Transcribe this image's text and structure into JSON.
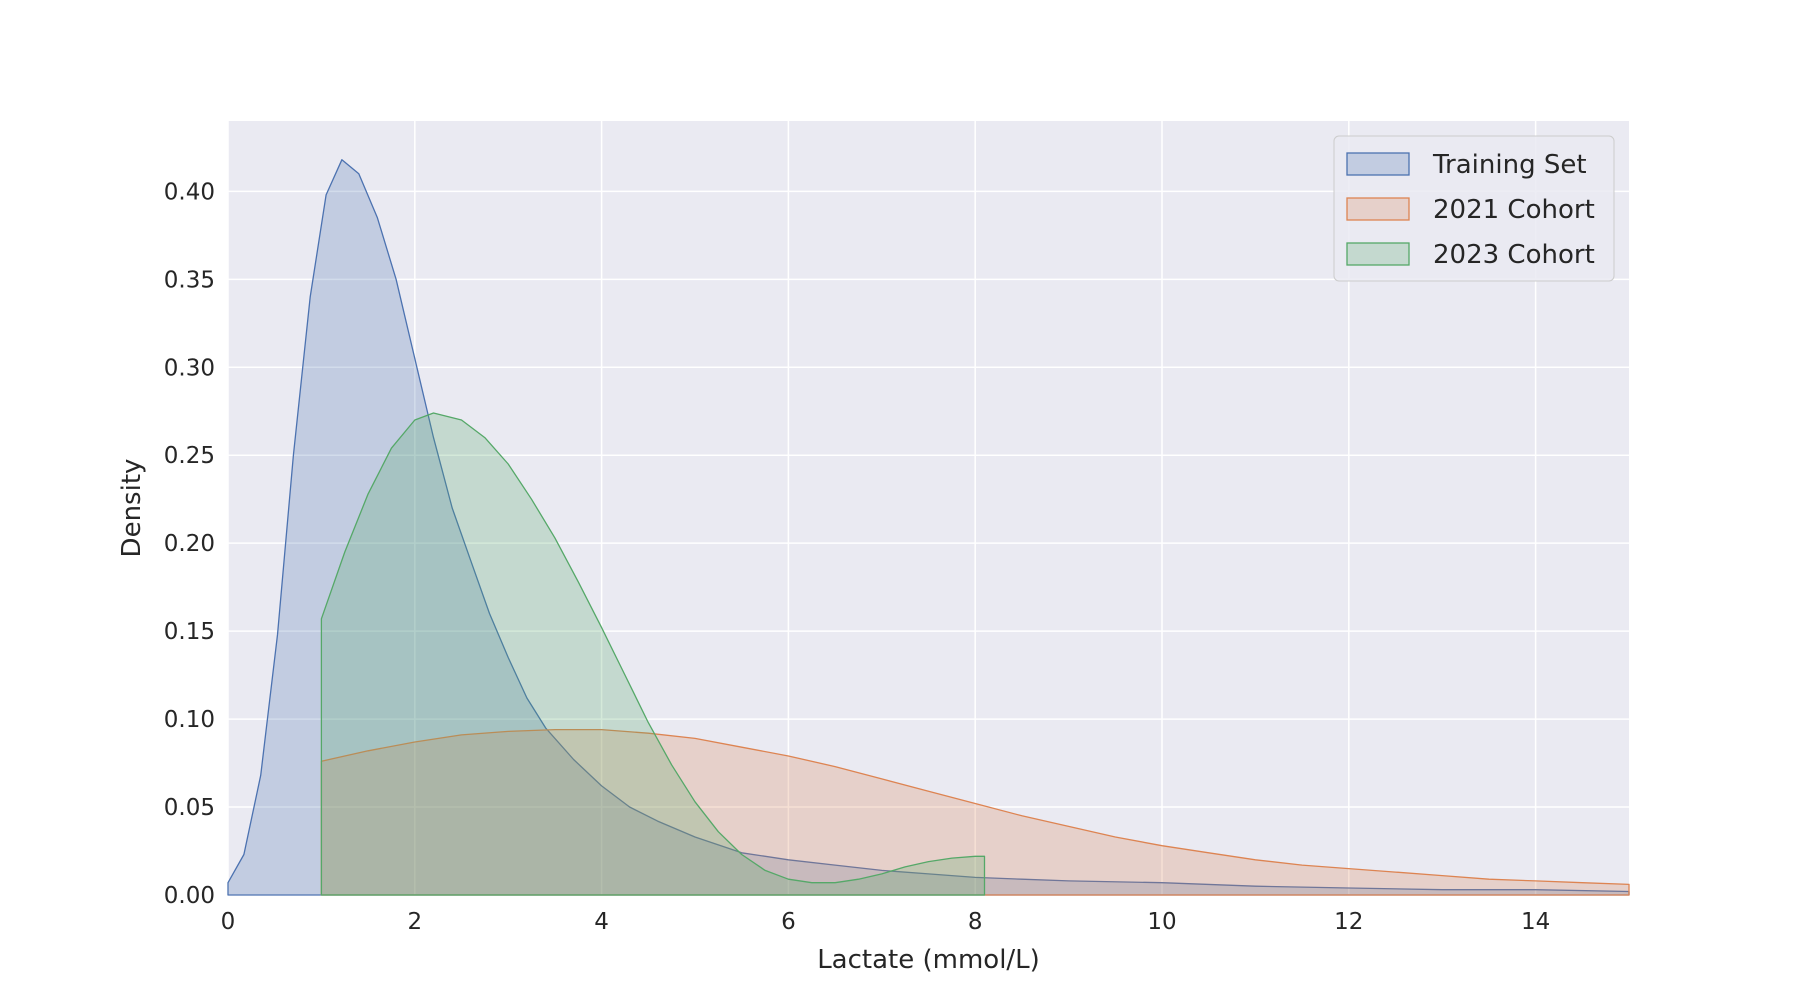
{
  "chart_data": {
    "type": "area",
    "title": "",
    "xlabel": "Lactate (mmol/L)",
    "ylabel": "Density",
    "xlim": [
      0,
      15
    ],
    "ylim": [
      0,
      0.44
    ],
    "x_ticks": [
      0,
      2,
      4,
      6,
      8,
      10,
      12,
      14
    ],
    "x_tick_labels": [
      "0",
      "2",
      "4",
      "6",
      "8",
      "10",
      "12",
      "14"
    ],
    "y_ticks": [
      0,
      0.05,
      0.1,
      0.15,
      0.2,
      0.25,
      0.3,
      0.35,
      0.4
    ],
    "y_tick_labels": [
      "0.00",
      "0.05",
      "0.10",
      "0.15",
      "0.20",
      "0.25",
      "0.30",
      "0.35",
      "0.40"
    ],
    "grid": true,
    "legend_position": "top-right",
    "series": [
      {
        "name": "Training Set",
        "color": "#4c72b0",
        "fill": "#c4cbe4",
        "x": [
          0,
          0.17,
          0.35,
          0.53,
          0.7,
          0.88,
          1.05,
          1.22,
          1.4,
          1.6,
          1.8,
          2.0,
          2.2,
          2.4,
          2.6,
          2.8,
          3.0,
          3.2,
          3.4,
          3.7,
          4.0,
          4.3,
          4.6,
          5.0,
          5.5,
          6.0,
          6.5,
          7.0,
          7.5,
          8.0,
          8.5,
          9.0,
          10.0,
          11.0,
          12.0,
          13.0,
          14.0,
          15.0
        ],
        "y": [
          0.007,
          0.023,
          0.068,
          0.148,
          0.25,
          0.34,
          0.398,
          0.418,
          0.41,
          0.385,
          0.35,
          0.305,
          0.26,
          0.22,
          0.19,
          0.16,
          0.135,
          0.112,
          0.095,
          0.077,
          0.062,
          0.05,
          0.042,
          0.033,
          0.024,
          0.02,
          0.017,
          0.014,
          0.012,
          0.01,
          0.009,
          0.008,
          0.007,
          0.005,
          0.004,
          0.003,
          0.003,
          0.002
        ]
      },
      {
        "name": "2021 Cohort",
        "color": "#dd8452",
        "fill": "#e8c6c2",
        "x": [
          1.0,
          1.5,
          2.0,
          2.5,
          3.0,
          3.5,
          4.0,
          4.5,
          5.0,
          5.5,
          6.0,
          6.5,
          7.0,
          7.5,
          8.0,
          8.5,
          9.0,
          9.5,
          10.0,
          10.5,
          11.0,
          11.5,
          12.0,
          12.5,
          13.0,
          13.5,
          14.0,
          14.5,
          15.0
        ],
        "y": [
          0.076,
          0.082,
          0.087,
          0.091,
          0.093,
          0.094,
          0.094,
          0.092,
          0.089,
          0.084,
          0.079,
          0.073,
          0.066,
          0.059,
          0.052,
          0.045,
          0.039,
          0.033,
          0.028,
          0.024,
          0.02,
          0.017,
          0.015,
          0.013,
          0.011,
          0.009,
          0.008,
          0.007,
          0.006
        ]
      },
      {
        "name": "2023 Cohort",
        "color": "#55a868",
        "fill": "#b8d3c2",
        "x": [
          1.0,
          1.25,
          1.5,
          1.75,
          2.0,
          2.2,
          2.5,
          2.75,
          3.0,
          3.25,
          3.5,
          3.75,
          4.0,
          4.25,
          4.5,
          4.75,
          5.0,
          5.25,
          5.5,
          5.75,
          6.0,
          6.25,
          6.5,
          6.75,
          7.0,
          7.25,
          7.5,
          7.75,
          8.0,
          8.1
        ],
        "y": [
          0.157,
          0.195,
          0.228,
          0.254,
          0.27,
          0.274,
          0.27,
          0.26,
          0.245,
          0.225,
          0.203,
          0.178,
          0.152,
          0.125,
          0.098,
          0.074,
          0.053,
          0.036,
          0.023,
          0.014,
          0.009,
          0.007,
          0.007,
          0.009,
          0.012,
          0.016,
          0.019,
          0.021,
          0.022,
          0.022
        ]
      }
    ]
  }
}
